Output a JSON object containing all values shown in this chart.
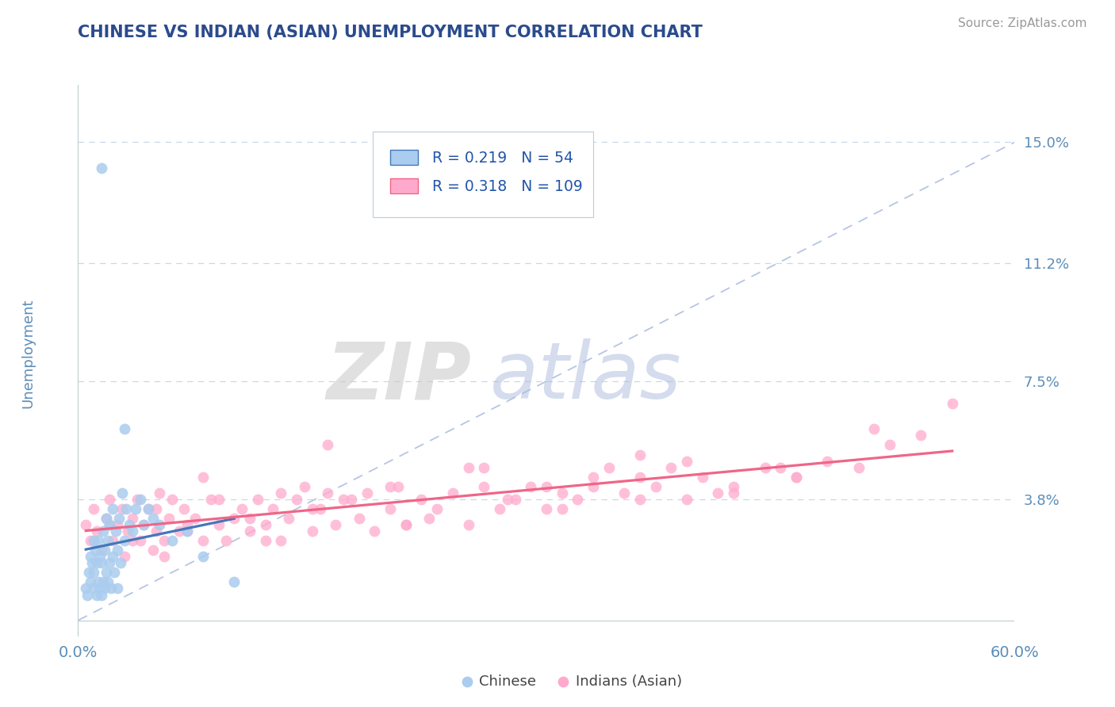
{
  "title": "CHINESE VS INDIAN (ASIAN) UNEMPLOYMENT CORRELATION CHART",
  "source": "Source: ZipAtlas.com",
  "ylabel": "Unemployment",
  "ytick_values": [
    0.0,
    0.038,
    0.075,
    0.112,
    0.15
  ],
  "ytick_labels": [
    "",
    "3.8%",
    "7.5%",
    "11.2%",
    "15.0%"
  ],
  "xtick_values": [
    0.0,
    0.6
  ],
  "xtick_labels": [
    "0.0%",
    "60.0%"
  ],
  "xlim": [
    0.0,
    0.6
  ],
  "ylim": [
    -0.005,
    0.168
  ],
  "title_color": "#2B4B8C",
  "source_color": "#999999",
  "ytick_color": "#5B8DB8",
  "xtick_color": "#5B8DB8",
  "grid_color": "#C8D8E8",
  "chinese_dot_color": "#AACCEE",
  "indian_dot_color": "#FFAACC",
  "chinese_line_color": "#4477BB",
  "indian_line_color": "#EE6688",
  "diag_color": "#AABBDD",
  "bg_color": "#FFFFFF",
  "legend_text_color": "#2255AA",
  "R_chinese": "0.219",
  "N_chinese": "54",
  "R_indian": "0.318",
  "N_indian": "109",
  "label_chinese": "Chinese",
  "label_indian": "Indians (Asian)",
  "chinese_x": [
    0.005,
    0.006,
    0.007,
    0.008,
    0.008,
    0.009,
    0.01,
    0.01,
    0.01,
    0.011,
    0.012,
    0.012,
    0.013,
    0.013,
    0.014,
    0.014,
    0.015,
    0.015,
    0.016,
    0.016,
    0.017,
    0.017,
    0.018,
    0.018,
    0.019,
    0.019,
    0.02,
    0.02,
    0.021,
    0.022,
    0.022,
    0.023,
    0.024,
    0.025,
    0.025,
    0.026,
    0.027,
    0.028,
    0.03,
    0.031,
    0.033,
    0.035,
    0.037,
    0.04,
    0.042,
    0.045,
    0.048,
    0.052,
    0.06,
    0.07,
    0.08,
    0.1,
    0.015,
    0.03
  ],
  "chinese_y": [
    0.01,
    0.008,
    0.015,
    0.012,
    0.02,
    0.018,
    0.01,
    0.025,
    0.015,
    0.022,
    0.008,
    0.018,
    0.012,
    0.025,
    0.01,
    0.02,
    0.008,
    0.018,
    0.012,
    0.028,
    0.01,
    0.022,
    0.015,
    0.032,
    0.012,
    0.025,
    0.018,
    0.03,
    0.01,
    0.02,
    0.035,
    0.015,
    0.028,
    0.01,
    0.022,
    0.032,
    0.018,
    0.04,
    0.025,
    0.035,
    0.03,
    0.028,
    0.035,
    0.038,
    0.03,
    0.035,
    0.032,
    0.03,
    0.025,
    0.028,
    0.02,
    0.012,
    0.142,
    0.06
  ],
  "indian_x": [
    0.005,
    0.008,
    0.01,
    0.012,
    0.015,
    0.018,
    0.02,
    0.022,
    0.025,
    0.028,
    0.03,
    0.032,
    0.035,
    0.038,
    0.04,
    0.042,
    0.045,
    0.048,
    0.05,
    0.052,
    0.055,
    0.058,
    0.06,
    0.065,
    0.068,
    0.07,
    0.075,
    0.08,
    0.085,
    0.09,
    0.095,
    0.1,
    0.105,
    0.11,
    0.115,
    0.12,
    0.125,
    0.13,
    0.135,
    0.14,
    0.145,
    0.15,
    0.155,
    0.16,
    0.165,
    0.17,
    0.18,
    0.185,
    0.19,
    0.2,
    0.205,
    0.21,
    0.22,
    0.23,
    0.24,
    0.25,
    0.26,
    0.27,
    0.28,
    0.29,
    0.3,
    0.31,
    0.32,
    0.33,
    0.34,
    0.35,
    0.36,
    0.37,
    0.38,
    0.39,
    0.4,
    0.42,
    0.44,
    0.46,
    0.48,
    0.5,
    0.52,
    0.54,
    0.02,
    0.035,
    0.05,
    0.07,
    0.09,
    0.11,
    0.13,
    0.15,
    0.175,
    0.2,
    0.225,
    0.25,
    0.275,
    0.3,
    0.33,
    0.36,
    0.39,
    0.42,
    0.45,
    0.055,
    0.08,
    0.12,
    0.16,
    0.21,
    0.26,
    0.31,
    0.36,
    0.41,
    0.46,
    0.51,
    0.56
  ],
  "indian_y": [
    0.03,
    0.025,
    0.035,
    0.028,
    0.022,
    0.032,
    0.038,
    0.025,
    0.03,
    0.035,
    0.02,
    0.028,
    0.032,
    0.038,
    0.025,
    0.03,
    0.035,
    0.022,
    0.028,
    0.04,
    0.025,
    0.032,
    0.038,
    0.028,
    0.035,
    0.03,
    0.032,
    0.025,
    0.038,
    0.03,
    0.025,
    0.032,
    0.035,
    0.028,
    0.038,
    0.03,
    0.035,
    0.025,
    0.032,
    0.038,
    0.042,
    0.028,
    0.035,
    0.04,
    0.03,
    0.038,
    0.032,
    0.04,
    0.028,
    0.035,
    0.042,
    0.03,
    0.038,
    0.035,
    0.04,
    0.03,
    0.042,
    0.035,
    0.038,
    0.042,
    0.035,
    0.04,
    0.038,
    0.042,
    0.048,
    0.04,
    0.045,
    0.042,
    0.048,
    0.038,
    0.045,
    0.042,
    0.048,
    0.045,
    0.05,
    0.048,
    0.055,
    0.058,
    0.03,
    0.025,
    0.035,
    0.028,
    0.038,
    0.032,
    0.04,
    0.035,
    0.038,
    0.042,
    0.032,
    0.048,
    0.038,
    0.042,
    0.045,
    0.038,
    0.05,
    0.04,
    0.048,
    0.02,
    0.045,
    0.025,
    0.055,
    0.03,
    0.048,
    0.035,
    0.052,
    0.04,
    0.045,
    0.06,
    0.068
  ]
}
